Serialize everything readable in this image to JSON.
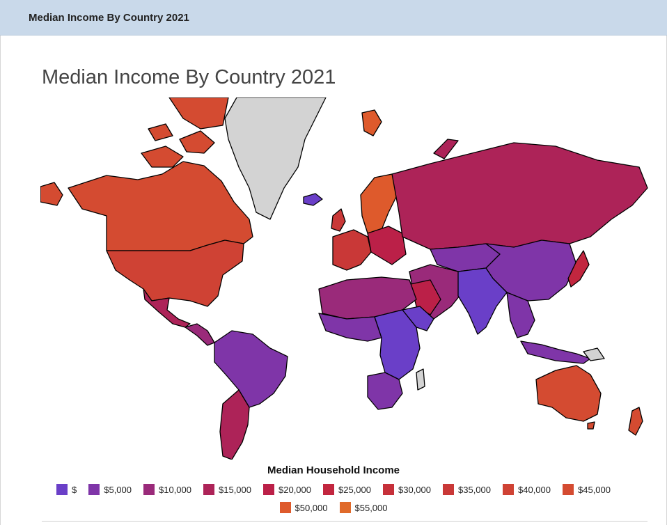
{
  "panel": {
    "header_title": "Median Income By Country 2021"
  },
  "map": {
    "title": "Median Income By Country 2021",
    "no_data_color": "#d3d3d3",
    "border_color": "#000000"
  },
  "legend": {
    "title": "Median Household Income",
    "items": [
      {
        "label": "$",
        "color": "#6a3fc8"
      },
      {
        "label": "$5,000",
        "color": "#7f35a8"
      },
      {
        "label": "$10,000",
        "color": "#9a2a7a"
      },
      {
        "label": "$15,000",
        "color": "#ad2358"
      },
      {
        "label": "$20,000",
        "color": "#bb2048"
      },
      {
        "label": "$25,000",
        "color": "#c2263f"
      },
      {
        "label": "$30,000",
        "color": "#c6303a"
      },
      {
        "label": "$35,000",
        "color": "#c93837"
      },
      {
        "label": "$40,000",
        "color": "#cf4234"
      },
      {
        "label": "$45,000",
        "color": "#d44b31"
      },
      {
        "label": "$50,000",
        "color": "#de5a2c"
      },
      {
        "label": "$55,000",
        "color": "#e06a2a"
      }
    ]
  }
}
